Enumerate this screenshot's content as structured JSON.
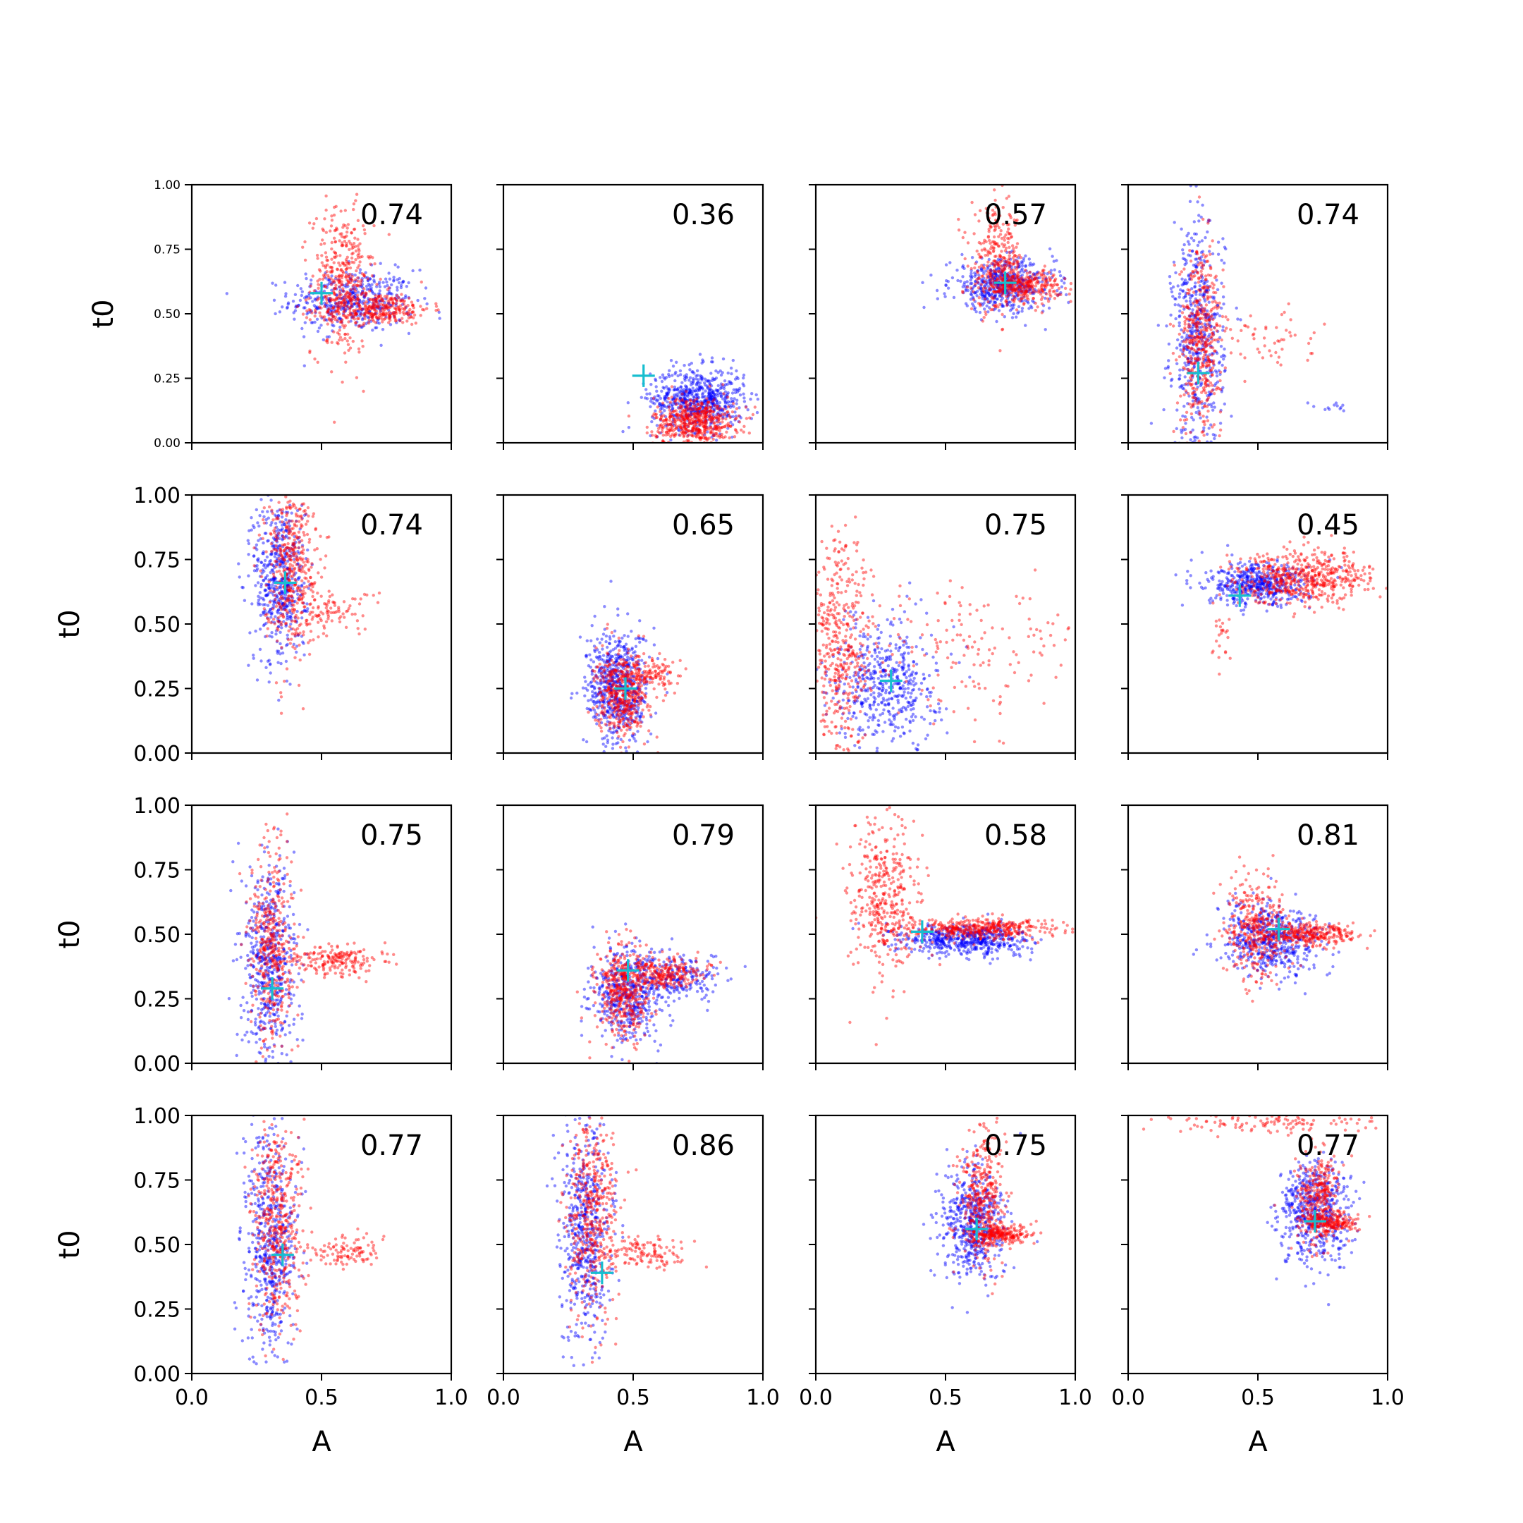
{
  "figure": {
    "colors": {
      "series_blue": "#0000ff",
      "series_red": "#ff0000",
      "marker": "#17becf"
    },
    "shared_axes": {
      "xlabel": "A",
      "ylabel": "t0",
      "xlim": [
        0,
        1
      ],
      "ylim": [
        0,
        1
      ],
      "xticks": [
        "0.0",
        "0.5",
        "1.0"
      ],
      "yticks": [
        "0.00",
        "0.25",
        "0.50",
        "0.75",
        "1.00"
      ]
    }
  },
  "chart_data": [
    {
      "type": "scatter",
      "row": 0,
      "col": 0,
      "annotation": "0.74",
      "marker_point": [
        0.5,
        0.58
      ],
      "xlabel": "",
      "ylabel": "t0",
      "xlim": [
        0,
        1
      ],
      "ylim": [
        0,
        1
      ],
      "xticks": [],
      "yticks": [
        "0.00",
        "0.25",
        "0.50",
        "0.75",
        "1.00"
      ],
      "clusters": {
        "blue": [
          {
            "cx": 0.62,
            "cy": 0.55,
            "sx": 0.12,
            "sy": 0.06,
            "n": 450
          }
        ],
        "red": [
          {
            "cx": 0.58,
            "cy": 0.62,
            "sx": 0.06,
            "sy": 0.14,
            "n": 400
          },
          {
            "cx": 0.72,
            "cy": 0.52,
            "sx": 0.1,
            "sy": 0.03,
            "n": 300
          }
        ]
      }
    },
    {
      "type": "scatter",
      "row": 0,
      "col": 1,
      "annotation": "0.36",
      "marker_point": [
        0.54,
        0.26
      ],
      "xlabel": "",
      "ylabel": "",
      "xlim": [
        0,
        1
      ],
      "ylim": [
        0,
        1
      ],
      "xticks": [],
      "yticks": [],
      "clusters": {
        "blue": [
          {
            "cx": 0.75,
            "cy": 0.17,
            "sx": 0.09,
            "sy": 0.06,
            "n": 650
          }
        ],
        "red": [
          {
            "cx": 0.74,
            "cy": 0.08,
            "sx": 0.08,
            "sy": 0.05,
            "n": 550
          }
        ]
      }
    },
    {
      "type": "scatter",
      "row": 0,
      "col": 2,
      "annotation": "0.57",
      "marker_point": [
        0.73,
        0.62
      ],
      "xlabel": "",
      "ylabel": "",
      "xlim": [
        0,
        1
      ],
      "ylim": [
        0,
        1
      ],
      "xticks": [],
      "yticks": [],
      "clusters": {
        "blue": [
          {
            "cx": 0.72,
            "cy": 0.61,
            "sx": 0.1,
            "sy": 0.05,
            "n": 550
          }
        ],
        "red": [
          {
            "cx": 0.7,
            "cy": 0.7,
            "sx": 0.05,
            "sy": 0.1,
            "n": 300
          },
          {
            "cx": 0.8,
            "cy": 0.61,
            "sx": 0.07,
            "sy": 0.03,
            "n": 300
          }
        ]
      }
    },
    {
      "type": "scatter",
      "row": 0,
      "col": 3,
      "annotation": "0.74",
      "marker_point": [
        0.27,
        0.27
      ],
      "xlabel": "",
      "ylabel": "",
      "xlim": [
        0,
        1
      ],
      "ylim": [
        0,
        1
      ],
      "xticks": [],
      "yticks": [],
      "clusters": {
        "blue": [
          {
            "cx": 0.27,
            "cy": 0.4,
            "sx": 0.05,
            "sy": 0.22,
            "n": 550
          },
          {
            "cx": 0.8,
            "cy": 0.14,
            "sx": 0.06,
            "sy": 0.01,
            "n": 12
          }
        ],
        "red": [
          {
            "cx": 0.28,
            "cy": 0.4,
            "sx": 0.04,
            "sy": 0.18,
            "n": 450
          },
          {
            "cx": 0.5,
            "cy": 0.4,
            "sx": 0.12,
            "sy": 0.06,
            "n": 60
          }
        ]
      }
    },
    {
      "type": "scatter",
      "row": 1,
      "col": 0,
      "annotation": "0.74",
      "marker_point": [
        0.36,
        0.66
      ],
      "xlabel": "",
      "ylabel": "t0",
      "xlim": [
        0,
        1
      ],
      "ylim": [
        0,
        1
      ],
      "xticks": [],
      "yticks": [
        "0.00",
        "0.25",
        "0.50",
        "0.75",
        "1.00"
      ],
      "clusters": {
        "blue": [
          {
            "cx": 0.34,
            "cy": 0.68,
            "sx": 0.05,
            "sy": 0.17,
            "n": 550
          }
        ],
        "red": [
          {
            "cx": 0.38,
            "cy": 0.72,
            "sx": 0.05,
            "sy": 0.16,
            "n": 450
          },
          {
            "cx": 0.55,
            "cy": 0.55,
            "sx": 0.08,
            "sy": 0.04,
            "n": 80
          }
        ]
      }
    },
    {
      "type": "scatter",
      "row": 1,
      "col": 1,
      "annotation": "0.65",
      "marker_point": [
        0.47,
        0.25
      ],
      "xlabel": "",
      "ylabel": "",
      "xlim": [
        0,
        1
      ],
      "ylim": [
        0,
        1
      ],
      "xticks": [],
      "yticks": [],
      "clusters": {
        "blue": [
          {
            "cx": 0.44,
            "cy": 0.25,
            "sx": 0.06,
            "sy": 0.11,
            "n": 650
          }
        ],
        "red": [
          {
            "cx": 0.46,
            "cy": 0.23,
            "sx": 0.05,
            "sy": 0.08,
            "n": 450
          },
          {
            "cx": 0.58,
            "cy": 0.3,
            "sx": 0.05,
            "sy": 0.03,
            "n": 100
          }
        ]
      }
    },
    {
      "type": "scatter",
      "row": 1,
      "col": 2,
      "annotation": "0.75",
      "marker_point": [
        0.29,
        0.28
      ],
      "xlabel": "",
      "ylabel": "",
      "xlim": [
        0,
        1
      ],
      "ylim": [
        0,
        1
      ],
      "xticks": [],
      "yticks": [],
      "clusters": {
        "blue": [
          {
            "cx": 0.27,
            "cy": 0.28,
            "sx": 0.1,
            "sy": 0.12,
            "n": 500
          }
        ],
        "red": [
          {
            "cx": 0.1,
            "cy": 0.4,
            "sx": 0.06,
            "sy": 0.22,
            "n": 450
          },
          {
            "cx": 0.6,
            "cy": 0.4,
            "sx": 0.2,
            "sy": 0.15,
            "n": 150
          }
        ]
      }
    },
    {
      "type": "scatter",
      "row": 1,
      "col": 3,
      "annotation": "0.45",
      "marker_point": [
        0.43,
        0.61
      ],
      "xlabel": "",
      "ylabel": "",
      "xlim": [
        0,
        1
      ],
      "ylim": [
        0,
        1
      ],
      "xticks": [],
      "yticks": [],
      "clusters": {
        "blue": [
          {
            "cx": 0.5,
            "cy": 0.65,
            "sx": 0.1,
            "sy": 0.04,
            "n": 500
          }
        ],
        "red": [
          {
            "cx": 0.68,
            "cy": 0.68,
            "sx": 0.13,
            "sy": 0.05,
            "n": 550
          },
          {
            "cx": 0.36,
            "cy": 0.45,
            "sx": 0.02,
            "sy": 0.08,
            "n": 25
          }
        ]
      }
    },
    {
      "type": "scatter",
      "row": 2,
      "col": 0,
      "annotation": "0.75",
      "marker_point": [
        0.31,
        0.29
      ],
      "xlabel": "",
      "ylabel": "t0",
      "xlim": [
        0,
        1
      ],
      "ylim": [
        0,
        1
      ],
      "xticks": [],
      "yticks": [
        "0.00",
        "0.25",
        "0.50",
        "0.75",
        "1.00"
      ],
      "clusters": {
        "blue": [
          {
            "cx": 0.3,
            "cy": 0.38,
            "sx": 0.05,
            "sy": 0.2,
            "n": 550
          }
        ],
        "red": [
          {
            "cx": 0.31,
            "cy": 0.45,
            "sx": 0.04,
            "sy": 0.2,
            "n": 400
          },
          {
            "cx": 0.55,
            "cy": 0.4,
            "sx": 0.09,
            "sy": 0.03,
            "n": 200
          }
        ]
      }
    },
    {
      "type": "scatter",
      "row": 2,
      "col": 1,
      "annotation": "0.79",
      "marker_point": [
        0.48,
        0.36
      ],
      "xlabel": "",
      "ylabel": "",
      "xlim": [
        0,
        1
      ],
      "ylim": [
        0,
        1
      ],
      "xticks": [],
      "yticks": [],
      "clusters": {
        "blue": [
          {
            "cx": 0.48,
            "cy": 0.27,
            "sx": 0.07,
            "sy": 0.09,
            "n": 500
          },
          {
            "cx": 0.68,
            "cy": 0.33,
            "sx": 0.09,
            "sy": 0.04,
            "n": 200
          }
        ],
        "red": [
          {
            "cx": 0.46,
            "cy": 0.27,
            "sx": 0.05,
            "sy": 0.09,
            "n": 400
          },
          {
            "cx": 0.62,
            "cy": 0.35,
            "sx": 0.08,
            "sy": 0.03,
            "n": 250
          }
        ]
      }
    },
    {
      "type": "scatter",
      "row": 2,
      "col": 2,
      "annotation": "0.58",
      "marker_point": [
        0.41,
        0.51
      ],
      "xlabel": "",
      "ylabel": "",
      "xlim": [
        0,
        1
      ],
      "ylim": [
        0,
        1
      ],
      "xticks": [],
      "yticks": [],
      "clusters": {
        "blue": [
          {
            "cx": 0.58,
            "cy": 0.48,
            "sx": 0.12,
            "sy": 0.03,
            "n": 550
          }
        ],
        "red": [
          {
            "cx": 0.26,
            "cy": 0.62,
            "sx": 0.07,
            "sy": 0.16,
            "n": 400
          },
          {
            "cx": 0.65,
            "cy": 0.52,
            "sx": 0.14,
            "sy": 0.02,
            "n": 400
          }
        ]
      }
    },
    {
      "type": "scatter",
      "row": 2,
      "col": 3,
      "annotation": "0.81",
      "marker_point": [
        0.58,
        0.52
      ],
      "xlabel": "",
      "ylabel": "",
      "xlim": [
        0,
        1
      ],
      "ylim": [
        0,
        1
      ],
      "xticks": [],
      "yticks": [],
      "clusters": {
        "blue": [
          {
            "cx": 0.55,
            "cy": 0.48,
            "sx": 0.1,
            "sy": 0.07,
            "n": 550
          }
        ],
        "red": [
          {
            "cx": 0.5,
            "cy": 0.52,
            "sx": 0.06,
            "sy": 0.1,
            "n": 350
          },
          {
            "cx": 0.7,
            "cy": 0.5,
            "sx": 0.09,
            "sy": 0.02,
            "n": 300
          }
        ]
      }
    },
    {
      "type": "scatter",
      "row": 3,
      "col": 0,
      "annotation": "0.77",
      "marker_point": [
        0.35,
        0.46
      ],
      "xlabel": "A",
      "ylabel": "t0",
      "xlim": [
        0,
        1
      ],
      "ylim": [
        0,
        1
      ],
      "xticks": [
        "0.0",
        "0.5",
        "1.0"
      ],
      "yticks": [
        "0.00",
        "0.25",
        "0.50",
        "0.75",
        "1.00"
      ],
      "clusters": {
        "blue": [
          {
            "cx": 0.3,
            "cy": 0.5,
            "sx": 0.05,
            "sy": 0.22,
            "n": 550
          }
        ],
        "red": [
          {
            "cx": 0.33,
            "cy": 0.58,
            "sx": 0.05,
            "sy": 0.2,
            "n": 450
          },
          {
            "cx": 0.6,
            "cy": 0.47,
            "sx": 0.07,
            "sy": 0.03,
            "n": 100
          }
        ]
      }
    },
    {
      "type": "scatter",
      "row": 3,
      "col": 1,
      "annotation": "0.86",
      "marker_point": [
        0.38,
        0.39
      ],
      "xlabel": "A",
      "ylabel": "",
      "xlim": [
        0,
        1
      ],
      "ylim": [
        0,
        1
      ],
      "xticks": [
        "0.0",
        "0.5",
        "1.0"
      ],
      "yticks": [],
      "clusters": {
        "blue": [
          {
            "cx": 0.32,
            "cy": 0.55,
            "sx": 0.05,
            "sy": 0.2,
            "n": 550
          }
        ],
        "red": [
          {
            "cx": 0.34,
            "cy": 0.62,
            "sx": 0.05,
            "sy": 0.2,
            "n": 450
          },
          {
            "cx": 0.55,
            "cy": 0.47,
            "sx": 0.08,
            "sy": 0.03,
            "n": 120
          }
        ]
      }
    },
    {
      "type": "scatter",
      "row": 3,
      "col": 2,
      "annotation": "0.75",
      "marker_point": [
        0.62,
        0.56
      ],
      "xlabel": "A",
      "ylabel": "",
      "xlim": [
        0,
        1
      ],
      "ylim": [
        0,
        1
      ],
      "xticks": [
        "0.0",
        "0.5",
        "1.0"
      ],
      "yticks": [],
      "clusters": {
        "blue": [
          {
            "cx": 0.6,
            "cy": 0.58,
            "sx": 0.06,
            "sy": 0.11,
            "n": 550
          }
        ],
        "red": [
          {
            "cx": 0.64,
            "cy": 0.68,
            "sx": 0.04,
            "sy": 0.13,
            "n": 350
          },
          {
            "cx": 0.7,
            "cy": 0.54,
            "sx": 0.06,
            "sy": 0.02,
            "n": 250
          }
        ]
      }
    },
    {
      "type": "scatter",
      "row": 3,
      "col": 3,
      "annotation": "0.77",
      "marker_point": [
        0.72,
        0.59
      ],
      "xlabel": "A",
      "ylabel": "",
      "xlim": [
        0,
        1
      ],
      "ylim": [
        0,
        1
      ],
      "xticks": [
        "0.0",
        "0.5",
        "1.0"
      ],
      "yticks": [],
      "clusters": {
        "blue": [
          {
            "cx": 0.72,
            "cy": 0.62,
            "sx": 0.07,
            "sy": 0.1,
            "n": 550
          }
        ],
        "red": [
          {
            "cx": 0.73,
            "cy": 0.68,
            "sx": 0.04,
            "sy": 0.09,
            "n": 300
          },
          {
            "cx": 0.78,
            "cy": 0.58,
            "sx": 0.05,
            "sy": 0.02,
            "n": 200
          },
          {
            "cx": 0.55,
            "cy": 0.97,
            "sx": 0.22,
            "sy": 0.02,
            "n": 120
          }
        ]
      }
    }
  ]
}
